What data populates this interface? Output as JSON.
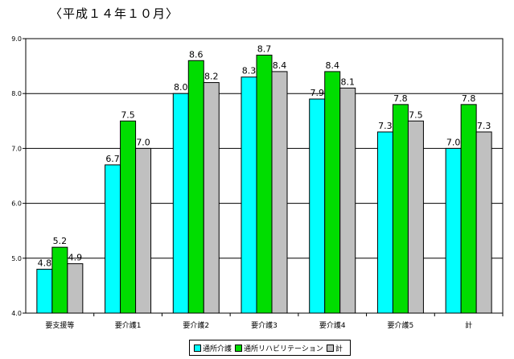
{
  "chart_data": {
    "type": "bar",
    "title": "〈平成１４年１０月〉",
    "categories": [
      "要支援等",
      "要介護1",
      "要介護2",
      "要介護3",
      "要介護4",
      "要介護5",
      "計"
    ],
    "series": [
      {
        "name": "通所介護",
        "color": "#00ffff",
        "values": [
          4.8,
          6.7,
          8.0,
          8.3,
          7.9,
          7.3,
          7.0
        ]
      },
      {
        "name": "通所リハビリテーション",
        "color": "#00dd00",
        "values": [
          5.2,
          7.5,
          8.6,
          8.7,
          8.4,
          7.8,
          7.8
        ]
      },
      {
        "name": "計",
        "color": "#c0c0c0",
        "values": [
          4.9,
          7.0,
          8.2,
          8.4,
          8.1,
          7.5,
          7.3
        ]
      }
    ],
    "yticks": [
      "4.0",
      "5.0",
      "6.0",
      "7.0",
      "8.0",
      "9.0"
    ],
    "ylim": [
      4.0,
      9.0
    ],
    "grid": true,
    "legend_position": "bottom"
  }
}
